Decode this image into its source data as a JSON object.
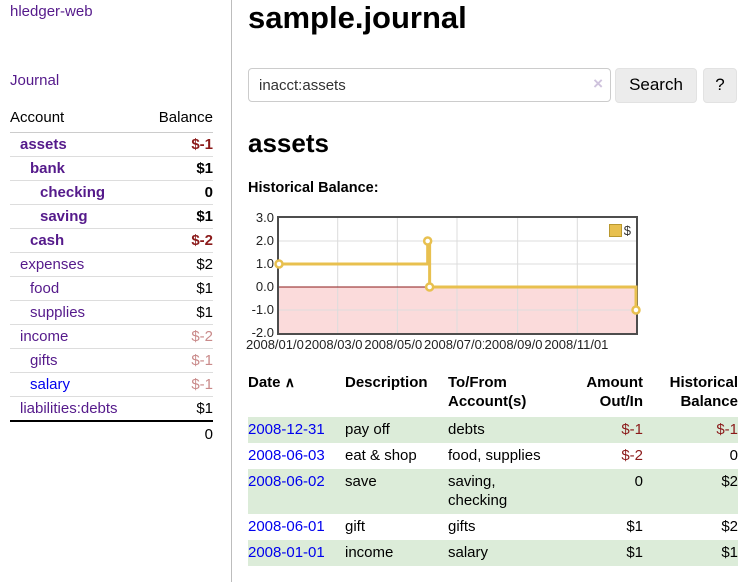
{
  "app": {
    "title": "hledger-web"
  },
  "sidebar": {
    "journal_label": "Journal",
    "accounts": {
      "headers": {
        "account": "Account",
        "balance": "Balance"
      },
      "rows": [
        {
          "account": "assets",
          "balance": "$-1"
        },
        {
          "account": "bank",
          "balance": "$1"
        },
        {
          "account": "checking",
          "balance": "0"
        },
        {
          "account": "saving",
          "balance": "$1"
        },
        {
          "account": "cash",
          "balance": "$-2"
        },
        {
          "account": "expenses",
          "balance": "$2"
        },
        {
          "account": "food",
          "balance": "$1"
        },
        {
          "account": "supplies",
          "balance": "$1"
        },
        {
          "account": "income",
          "balance": "$-2"
        },
        {
          "account": "gifts",
          "balance": "$-1"
        },
        {
          "account": "salary",
          "balance": "$-1"
        },
        {
          "account": "liabilities:debts",
          "balance": "$1"
        }
      ],
      "total": "0"
    }
  },
  "main": {
    "title": "sample.journal",
    "search": {
      "value": "inacct:assets",
      "clear_icon": "×",
      "button_label": "Search",
      "help_label": "?"
    },
    "section_title": "assets",
    "chart_label": "Historical Balance:"
  },
  "chart_data": {
    "type": "line",
    "step": true,
    "title": "Historical Balance:",
    "series": [
      {
        "name": "$",
        "color": "#e8c04f",
        "points": [
          {
            "x": "2008-01-01",
            "y": 1
          },
          {
            "x": "2008-06-01",
            "y": 2
          },
          {
            "x": "2008-06-03",
            "y": 0
          },
          {
            "x": "2008-12-31",
            "y": -1
          }
        ]
      }
    ],
    "x_range": [
      "2008-01-01",
      "2008-12-31"
    ],
    "ylim": [
      -2,
      3
    ],
    "y_ticks": [
      {
        "v": 3,
        "label": "3.0"
      },
      {
        "v": 2,
        "label": "2.0"
      },
      {
        "v": 1,
        "label": "1.0"
      },
      {
        "v": 0,
        "label": "0.0"
      },
      {
        "v": -1,
        "label": "-1.0"
      },
      {
        "v": -2,
        "label": "-2.0"
      }
    ],
    "x_ticks": [
      {
        "x": "2008-01-01",
        "label": "2008/01/01"
      },
      {
        "x": "2008-03-01",
        "label": "2008/03/01"
      },
      {
        "x": "2008-05-01",
        "label": "2008/05/01"
      },
      {
        "x": "2008-07-01",
        "label": "2008/07/01"
      },
      {
        "x": "2008-09-01",
        "label": "2008/09/01"
      },
      {
        "x": "2008-11-01",
        "label": "2008/11/01"
      }
    ],
    "legend_position": "top-right",
    "grid": true,
    "grid_color": "#dcdcdc",
    "negative_region_color": "#fbdbdb",
    "zero_line_color": "#8b1a1a"
  },
  "register": {
    "headers": {
      "date": "Date",
      "sort_icon": "∧",
      "description": "Description",
      "accounts": "To/From Account(s)",
      "amount": "Amount Out/In",
      "balance": "Historical Balance"
    },
    "rows": [
      {
        "date": "2008-12-31",
        "description": "pay off",
        "accounts": "debts",
        "amount": "$-1",
        "balance": "$-1"
      },
      {
        "date": "2008-06-03",
        "description": "eat & shop",
        "accounts": "food, supplies",
        "amount": "$-2",
        "balance": "0"
      },
      {
        "date": "2008-06-02",
        "description": "save",
        "accounts": "saving,\nchecking",
        "amount": "0",
        "balance": "$2"
      },
      {
        "date": "2008-06-01",
        "description": "gift",
        "accounts": "gifts",
        "amount": "$1",
        "balance": "$2"
      },
      {
        "date": "2008-01-01",
        "description": "income",
        "accounts": "salary",
        "amount": "$1",
        "balance": "$1"
      }
    ]
  }
}
